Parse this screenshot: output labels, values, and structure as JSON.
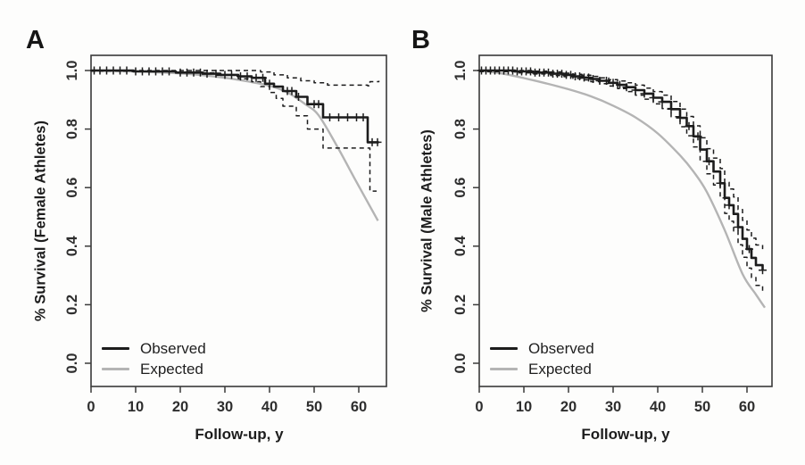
{
  "figure": {
    "background": "#fdfdfc",
    "frame_color": "#3a3a3a",
    "tick_label_color": "#2e2e2e"
  },
  "chart_data": {
    "type": "line",
    "description": "Kaplan-Meier observed vs expected survival, two panels",
    "panels": [
      {
        "label": "A",
        "xlabel": "Follow-up, y",
        "ylabel": "% Survival (Female Athletes)",
        "xlim": [
          0,
          66
        ],
        "ylim": [
          0,
          1
        ],
        "xticks": [
          0,
          10,
          20,
          30,
          40,
          50,
          60
        ],
        "ytick_values": [
          0,
          0.2,
          0.4,
          0.6,
          0.8,
          1.0
        ],
        "ytick_labels": [
          "0.0",
          "0.2",
          "0.4",
          "0.6",
          "0.8",
          "1.0"
        ],
        "grid": false,
        "legend_position": "bottom-left",
        "legend": [
          {
            "label": "Observed",
            "color": "#1c1c1c"
          },
          {
            "label": "Expected",
            "color": "#b4b4b4"
          }
        ],
        "series": [
          {
            "id": "expected",
            "name": "Expected",
            "curve": "smooth",
            "style": "solid",
            "color": "#b4b4b4",
            "width": 2.4,
            "x": [
              0,
              5,
              10,
              15,
              20,
              25,
              30,
              35,
              40,
              44,
              48,
              51,
              55,
              59,
              62,
              64.3
            ],
            "y": [
              1.0,
              0.999,
              0.997,
              0.994,
              0.99,
              0.984,
              0.975,
              0.963,
              0.948,
              0.925,
              0.885,
              0.847,
              0.745,
              0.633,
              0.55,
              0.487
            ]
          },
          {
            "id": "ci-upper",
            "name": "95% CI upper",
            "curve": "step",
            "style": "dashed",
            "color": "#1c1c1c",
            "width": 1.5,
            "x": [
              0,
              30,
              38,
              41,
              44,
              47,
              50,
              53,
              62,
              62.5,
              64.5
            ],
            "y": [
              1.0,
              1.0,
              0.995,
              0.985,
              0.975,
              0.965,
              0.958,
              0.95,
              0.948,
              0.962,
              0.965
            ]
          },
          {
            "id": "ci-lower",
            "name": "95% CI lower",
            "curve": "step",
            "style": "dashed",
            "color": "#1c1c1c",
            "width": 1.5,
            "x": [
              0,
              20,
              28,
              33,
              36,
              38,
              40,
              41.5,
              43,
              46,
              48.5,
              52,
              62.5,
              64
            ],
            "y": [
              0.998,
              0.992,
              0.984,
              0.972,
              0.962,
              0.945,
              0.925,
              0.905,
              0.878,
              0.845,
              0.8,
              0.735,
              0.588,
              0.588
            ]
          },
          {
            "id": "observed",
            "name": "Observed",
            "curve": "step",
            "style": "solid",
            "color": "#1c1c1c",
            "width": 2.6,
            "x": [
              0,
              9.5,
              19,
              25,
              29,
              33,
              36,
              39,
              41,
              43,
              46,
              48.5,
              52,
              62,
              64.5
            ],
            "y": [
              1.0,
              0.997,
              0.993,
              0.989,
              0.985,
              0.98,
              0.975,
              0.955,
              0.945,
              0.93,
              0.91,
              0.885,
              0.84,
              0.755,
              0.755
            ]
          }
        ],
        "censor_marks_x": [
          0.7,
          2,
          3.5,
          5,
          6.5,
          8,
          10,
          11.5,
          13,
          14.5,
          16,
          17.5,
          20,
          21.5,
          23,
          24.5,
          26,
          28,
          30,
          31.5,
          33.5,
          35,
          37,
          38.5,
          40,
          44,
          45,
          46.5,
          50,
          51,
          53.5,
          55.5,
          57.5,
          59.5,
          61,
          63,
          64.2
        ]
      },
      {
        "label": "B",
        "xlabel": "Follow-up, y",
        "ylabel": "% Survival (Male Athletes)",
        "xlim": [
          0,
          66
        ],
        "ylim": [
          0,
          1
        ],
        "xticks": [
          0,
          10,
          20,
          30,
          40,
          50,
          60
        ],
        "ytick_values": [
          0,
          0.2,
          0.4,
          0.6,
          0.8,
          1.0
        ],
        "ytick_labels": [
          "0.0",
          "0.2",
          "0.4",
          "0.6",
          "0.8",
          "1.0"
        ],
        "grid": false,
        "legend_position": "bottom-left",
        "legend": [
          {
            "label": "Observed",
            "color": "#1c1c1c"
          },
          {
            "label": "Expected",
            "color": "#b4b4b4"
          }
        ],
        "series": [
          {
            "id": "expected",
            "name": "Expected",
            "curve": "smooth",
            "style": "solid",
            "color": "#b4b4b4",
            "width": 2.4,
            "x": [
              0,
              5,
              10,
              15,
              20,
              25,
              30,
              35,
              40,
              45,
              48,
              51,
              55,
              59,
              62,
              64
            ],
            "y": [
              1.0,
              0.99,
              0.974,
              0.956,
              0.936,
              0.912,
              0.88,
              0.84,
              0.785,
              0.71,
              0.655,
              0.585,
              0.455,
              0.305,
              0.235,
              0.19
            ]
          },
          {
            "id": "ci-upper",
            "name": "95% CI upper",
            "curve": "step",
            "style": "dashed",
            "color": "#1c1c1c",
            "width": 1.5,
            "x": [
              0,
              8,
              12,
              16,
              19,
              21,
              23,
              25,
              27,
              29,
              31,
              33,
              35,
              37,
              39,
              41,
              43,
              45,
              46.5,
              48,
              49.5,
              51,
              52.5,
              54,
              55,
              56,
              57,
              58,
              59,
              60,
              61,
              62,
              63.5
            ],
            "y": [
              1.0,
              1.0,
              0.998,
              0.995,
              0.991,
              0.987,
              0.984,
              0.98,
              0.975,
              0.969,
              0.964,
              0.958,
              0.95,
              0.94,
              0.928,
              0.916,
              0.894,
              0.868,
              0.843,
              0.811,
              0.77,
              0.733,
              0.701,
              0.665,
              0.618,
              0.595,
              0.568,
              0.525,
              0.488,
              0.455,
              0.427,
              0.404,
              0.39
            ]
          },
          {
            "id": "ci-lower",
            "name": "95% CI lower",
            "curve": "step",
            "style": "dashed",
            "color": "#1c1c1c",
            "width": 1.5,
            "x": [
              0,
              8,
              12,
              16,
              19,
              21,
              23,
              25,
              27,
              29,
              31,
              33,
              35,
              37,
              39,
              41,
              43,
              45,
              46.5,
              48,
              49.5,
              51,
              52.5,
              54,
              55,
              56,
              57,
              58,
              59,
              60,
              61,
              62,
              63.5
            ],
            "y": [
              0.996,
              0.992,
              0.988,
              0.983,
              0.979,
              0.973,
              0.968,
              0.962,
              0.955,
              0.947,
              0.938,
              0.928,
              0.916,
              0.902,
              0.886,
              0.87,
              0.842,
              0.808,
              0.777,
              0.739,
              0.69,
              0.647,
              0.609,
              0.565,
              0.512,
              0.485,
              0.452,
              0.405,
              0.362,
              0.325,
              0.293,
              0.266,
              0.246
            ]
          },
          {
            "id": "observed",
            "name": "Observed",
            "curve": "step",
            "style": "solid",
            "color": "#1c1c1c",
            "width": 2.6,
            "x": [
              0,
              8,
              12,
              16,
              19,
              21,
              23,
              25,
              27,
              29,
              31,
              33,
              35,
              37,
              39,
              41,
              43,
              45,
              46.5,
              48,
              49.5,
              51,
              52.5,
              54,
              55,
              56,
              57,
              58,
              59,
              60,
              61,
              62,
              63.5
            ],
            "y": [
              1.0,
              0.997,
              0.993,
              0.989,
              0.985,
              0.98,
              0.976,
              0.971,
              0.965,
              0.958,
              0.951,
              0.943,
              0.933,
              0.921,
              0.907,
              0.893,
              0.868,
              0.838,
              0.81,
              0.775,
              0.73,
              0.69,
              0.655,
              0.615,
              0.565,
              0.54,
              0.51,
              0.465,
              0.425,
              0.39,
              0.36,
              0.335,
              0.318
            ]
          }
        ],
        "censor_marks_x": [
          0.5,
          1.5,
          2.5,
          3.5,
          4.5,
          5.5,
          6.5,
          7.5,
          8.5,
          9.5,
          10.5,
          11.5,
          12.5,
          13.5,
          14.5,
          15.5,
          16.5,
          17.5,
          18.5,
          19.5,
          20.5,
          21.5,
          22.5,
          23.5,
          24.5,
          25.5,
          27,
          28.5,
          30,
          31.5,
          33,
          35,
          37,
          39,
          41,
          43,
          45,
          47,
          49,
          51.5,
          54,
          56,
          58,
          60.5,
          63.5
        ]
      }
    ]
  }
}
